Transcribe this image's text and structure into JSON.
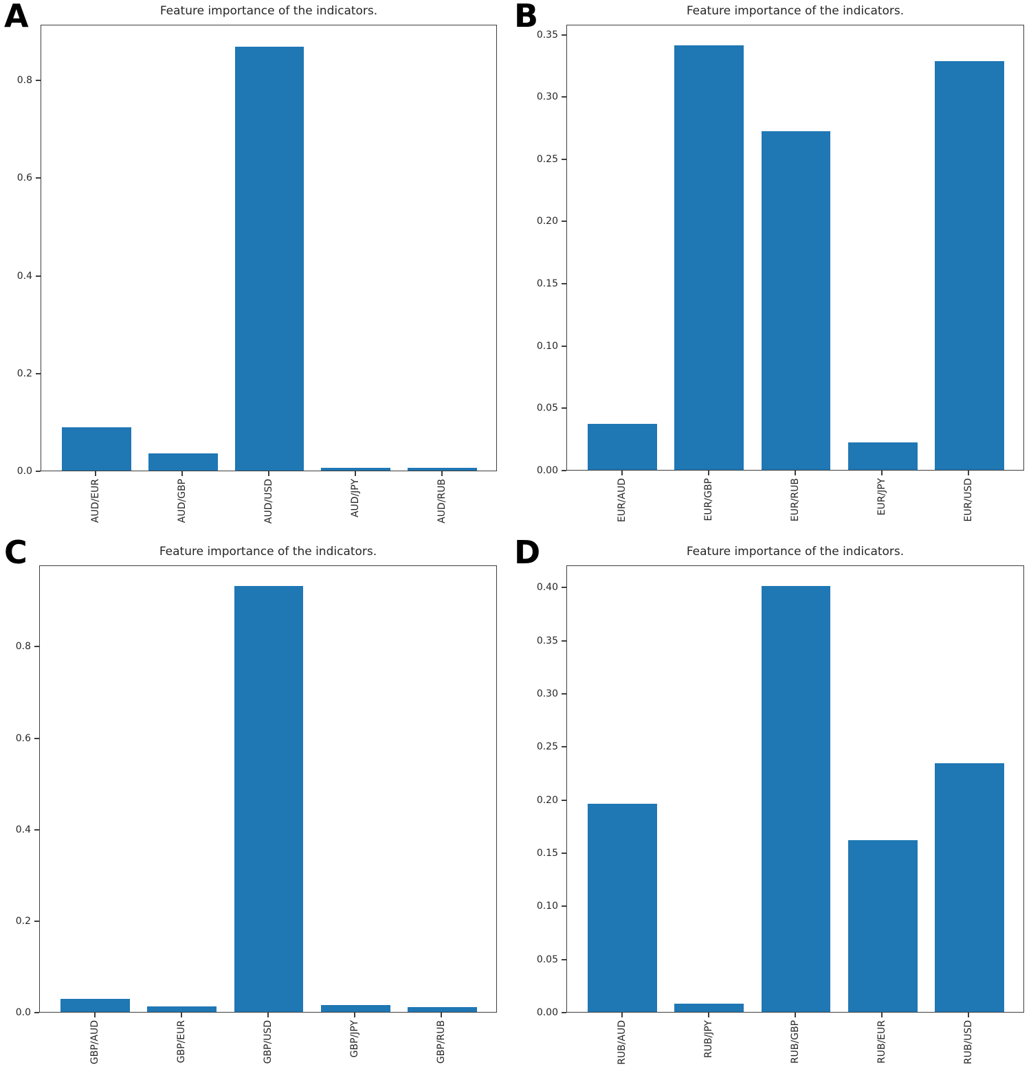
{
  "figure": {
    "background_color": "#ffffff",
    "bar_color": "#1f77b4",
    "axis_color": "#3d3d3d",
    "text_color": "#262626"
  },
  "chart_data": [
    {
      "panel_label": "A",
      "type": "bar",
      "title": "Feature importance of the indicators.",
      "categories": [
        "AUD/EUR",
        "AUD/GBP",
        "AUD/USD",
        "AUD/JPY",
        "AUD/RUB"
      ],
      "values": [
        0.089,
        0.035,
        0.868,
        0.005,
        0.005
      ],
      "xlabel": "",
      "ylabel": "",
      "ylim": [
        0,
        0.914
      ],
      "ytick_values": [
        0.0,
        0.2,
        0.4,
        0.6,
        0.8
      ],
      "ytick_labels": [
        "0.0",
        "0.2",
        "0.4",
        "0.6",
        "0.8"
      ],
      "grid": false,
      "legend": "none",
      "xtick_rotation": 90
    },
    {
      "panel_label": "B",
      "type": "bar",
      "title": "Feature importance of the indicators.",
      "categories": [
        "EUR/AUD",
        "EUR/GBP",
        "EUR/RUB",
        "EUR/JPY",
        "EUR/USD"
      ],
      "values": [
        0.037,
        0.341,
        0.272,
        0.022,
        0.328
      ],
      "xlabel": "",
      "ylabel": "",
      "ylim": [
        0,
        0.358
      ],
      "ytick_values": [
        0.0,
        0.05,
        0.1,
        0.15,
        0.2,
        0.25,
        0.3,
        0.35
      ],
      "ytick_labels": [
        "0.00",
        "0.05",
        "0.10",
        "0.15",
        "0.20",
        "0.25",
        "0.30",
        "0.35"
      ],
      "grid": false,
      "legend": "none",
      "xtick_rotation": 90
    },
    {
      "panel_label": "C",
      "type": "bar",
      "title": "Feature importance of the indicators.",
      "categories": [
        "GBP/AUD",
        "GBP/EUR",
        "GBP/USD",
        "GBP/JPY",
        "GBP/RUB"
      ],
      "values": [
        0.028,
        0.012,
        0.932,
        0.015,
        0.01
      ],
      "xlabel": "",
      "ylabel": "",
      "ylim": [
        0,
        0.978
      ],
      "ytick_values": [
        0.0,
        0.2,
        0.4,
        0.6,
        0.8
      ],
      "ytick_labels": [
        "0.0",
        "0.2",
        "0.4",
        "0.6",
        "0.8"
      ],
      "grid": false,
      "legend": "none",
      "xtick_rotation": 90
    },
    {
      "panel_label": "D",
      "type": "bar",
      "title": "Feature importance of the indicators.",
      "categories": [
        "RUB/AUD",
        "RUB/JPY",
        "RUB/GBP",
        "RUB/EUR",
        "RUB/USD"
      ],
      "values": [
        0.196,
        0.008,
        0.401,
        0.162,
        0.234
      ],
      "xlabel": "",
      "ylabel": "",
      "ylim": [
        0,
        0.421
      ],
      "ytick_values": [
        0.0,
        0.05,
        0.1,
        0.15,
        0.2,
        0.25,
        0.3,
        0.35,
        0.4
      ],
      "ytick_labels": [
        "0.00",
        "0.05",
        "0.10",
        "0.15",
        "0.20",
        "0.25",
        "0.30",
        "0.35",
        "0.40"
      ],
      "grid": false,
      "legend": "none",
      "xtick_rotation": 90
    }
  ]
}
